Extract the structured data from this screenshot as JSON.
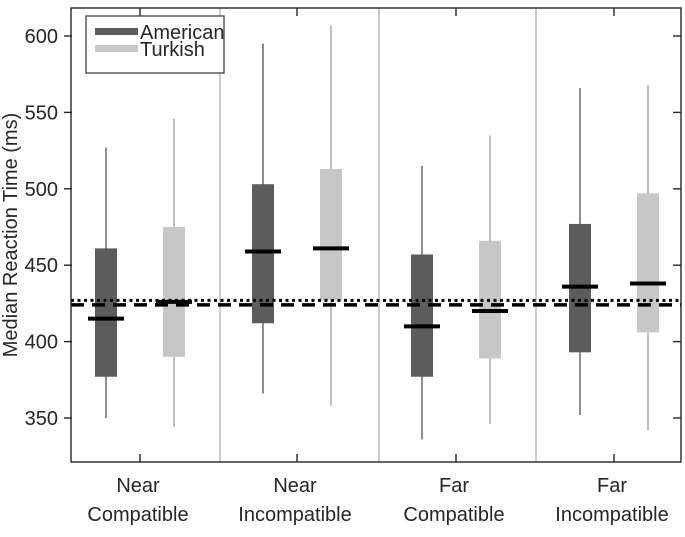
{
  "figure": {
    "type": "matlab-style-boxplot-figure",
    "background": "#ffffff"
  },
  "chart_data": {
    "type": "boxplot",
    "title": "",
    "xlabel": "",
    "ylabel": "Median Reaction Time (ms)",
    "ylim": [
      321,
      618
    ],
    "yticks": [
      350,
      400,
      450,
      500,
      550,
      600
    ],
    "grid": "vertical group separators only",
    "legend_position": "top-left",
    "categories": [
      "Near Compatible",
      "Near Incompatible",
      "Far Compatible",
      "Far Incompatible"
    ],
    "category_lines": [
      [
        "Near",
        "Compatible"
      ],
      [
        "Near",
        "Incompatible"
      ],
      [
        "Far",
        "Compatible"
      ],
      [
        "Far",
        "Incompatible"
      ]
    ],
    "series": [
      {
        "name": "American",
        "color": "#5c5c5c",
        "whisker_color": "#828282",
        "boxes": [
          {
            "whisker_low": 350,
            "q1": 377,
            "median": 415,
            "q3": 461,
            "whisker_high": 527
          },
          {
            "whisker_low": 366,
            "q1": 412,
            "median": 459,
            "q3": 503,
            "whisker_high": 595
          },
          {
            "whisker_low": 336,
            "q1": 377,
            "median": 410,
            "q3": 457,
            "whisker_high": 515
          },
          {
            "whisker_low": 352,
            "q1": 393,
            "median": 436,
            "q3": 477,
            "whisker_high": 566
          }
        ]
      },
      {
        "name": "Turkish",
        "color": "#c7c7c7",
        "whisker_color": "#b8b8b8",
        "boxes": [
          {
            "whisker_low": 344,
            "q1": 390,
            "median": 426,
            "q3": 475,
            "whisker_high": 546
          },
          {
            "whisker_low": 358,
            "q1": 427,
            "median": 461,
            "q3": 513,
            "whisker_high": 607
          },
          {
            "whisker_low": 346,
            "q1": 389,
            "median": 420,
            "q3": 466,
            "whisker_high": 535
          },
          {
            "whisker_low": 342,
            "q1": 406,
            "median": 438,
            "q3": 497,
            "whisker_high": 568
          }
        ]
      }
    ],
    "median_line_color": "#000000",
    "reference_lines": [
      {
        "style": "dotted",
        "value": 427,
        "color": "#000000"
      },
      {
        "style": "dashed",
        "value": 424,
        "color": "#000000"
      }
    ]
  }
}
